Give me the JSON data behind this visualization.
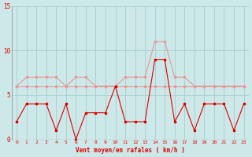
{
  "x": [
    0,
    1,
    2,
    3,
    4,
    5,
    6,
    7,
    8,
    9,
    10,
    11,
    12,
    13,
    14,
    15,
    16,
    17,
    18,
    19,
    20,
    21,
    22,
    23
  ],
  "wind_gust": [
    6,
    7,
    7,
    7,
    7,
    6,
    7,
    7,
    6,
    6,
    6,
    7,
    7,
    7,
    11,
    11,
    7,
    7,
    6,
    6,
    6,
    6,
    6,
    6
  ],
  "wind_avg": [
    6,
    6,
    6,
    6,
    6,
    6,
    6,
    6,
    6,
    6,
    6,
    6,
    6,
    6,
    6,
    6,
    6,
    6,
    6,
    6,
    6,
    6,
    6,
    6
  ],
  "wind_min": [
    2,
    4,
    4,
    4,
    1,
    4,
    0,
    3,
    3,
    3,
    6,
    2,
    2,
    2,
    9,
    9,
    2,
    4,
    1,
    4,
    4,
    4,
    1,
    4
  ],
  "ylim": [
    0,
    15
  ],
  "yticks": [
    0,
    5,
    10,
    15
  ],
  "xlabel": "Vent moyen/en rafales ( km/h )",
  "bg_color": "#cde8e8",
  "grid_color": "#aacccc",
  "color_light": "#e89898",
  "color_dark": "#dd0000",
  "tick_color": "#dd0000",
  "marker_size": 1.8,
  "line_width": 0.8
}
